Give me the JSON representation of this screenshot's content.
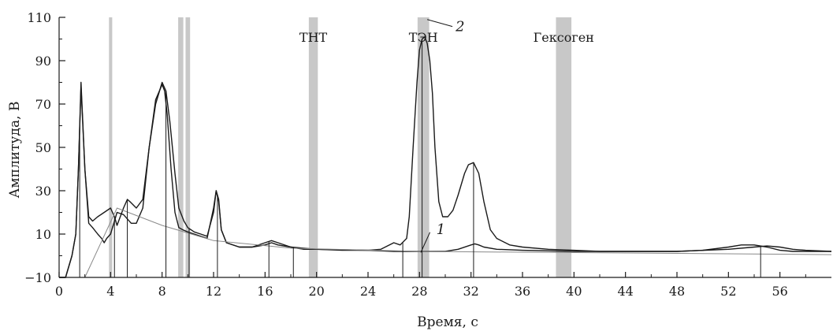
{
  "chart_data": {
    "type": "line",
    "title": "",
    "xlabel": "Время, с",
    "ylabel": "Амплитуда, В",
    "xlim": [
      0,
      60
    ],
    "ylim": [
      -10,
      110
    ],
    "xticks": [
      0,
      4,
      8,
      12,
      16,
      20,
      24,
      28,
      32,
      36,
      40,
      44,
      48,
      52,
      56
    ],
    "yticks": [
      -10,
      10,
      30,
      50,
      70,
      90,
      110
    ],
    "ytick_labels": [
      "−10",
      "10",
      "30",
      "50",
      "70",
      "90",
      "110"
    ],
    "grid": false,
    "legend": "none",
    "highlight_bands": [
      {
        "x": 4.0,
        "width": 0.25,
        "label": ""
      },
      {
        "x": 9.45,
        "width": 0.4,
        "label": ""
      },
      {
        "x": 10.0,
        "width": 0.35,
        "label": ""
      },
      {
        "x": 19.75,
        "width": 0.7,
        "label": "ТНТ"
      },
      {
        "x": 28.3,
        "width": 0.9,
        "label": "ТЭН"
      },
      {
        "x": 39.2,
        "width": 1.2,
        "label": "Гексоген"
      }
    ],
    "band_color": "#c8c8c8",
    "curve_labels": [
      {
        "text": "1",
        "x": 29.3,
        "y": 5.0
      },
      {
        "text": "2",
        "x": 30.8,
        "y": 106.5
      }
    ],
    "series": [
      {
        "x": [
          0,
          0.5,
          1.0,
          1.3,
          1.5,
          1.7,
          2.0,
          2.3,
          2.6,
          3.0,
          3.3,
          3.5,
          3.7,
          4.0,
          4.2,
          4.5,
          5.0,
          5.3,
          5.6,
          6.0,
          6.5,
          7.0,
          7.5,
          8.0,
          8.2,
          8.4,
          8.7,
          9.0,
          9.3,
          9.6,
          10.0,
          10.5,
          11.0,
          11.5,
          12.0,
          12.2,
          12.4,
          12.6,
          13.0,
          14.0,
          15.0,
          16.0,
          16.5,
          17.0,
          18.0,
          19.0,
          20.0,
          22.0,
          24.0,
          25.0,
          26.0,
          26.5,
          27.0,
          27.2,
          27.5,
          27.8,
          28.0,
          28.2,
          28.4,
          28.6,
          28.8,
          29.0,
          29.2,
          29.5,
          29.8,
          30.2,
          30.6,
          31.0,
          31.5,
          31.8,
          32.2,
          32.6,
          33.0,
          33.5,
          34.0,
          35.0,
          36.0,
          38.0,
          40.0,
          42.0,
          45.0,
          48.0,
          50.0,
          52.0,
          53.0,
          54.0,
          55.0,
          56.0,
          57.0,
          58.0,
          59.0,
          60.0
        ],
        "y": [
          -10,
          -10,
          0,
          10,
          40,
          78,
          40,
          15,
          13,
          10,
          8,
          6,
          8,
          10,
          14,
          20,
          19,
          17,
          15,
          15,
          22,
          50,
          72,
          79,
          76,
          65,
          40,
          20,
          13,
          12,
          11,
          10,
          9,
          8,
          22,
          30,
          25,
          12,
          6,
          4,
          4,
          5,
          6,
          5,
          4,
          3,
          3,
          2.5,
          2.5,
          3,
          6,
          5,
          8,
          18,
          50,
          80,
          95,
          100,
          101,
          98,
          90,
          75,
          50,
          25,
          18,
          18,
          21,
          28,
          38,
          42,
          43,
          38,
          25,
          12,
          8,
          5,
          4,
          3,
          2.5,
          2,
          2,
          2,
          2.5,
          4,
          5,
          5,
          4,
          2.5,
          2,
          2,
          2,
          2
        ]
      },
      {
        "x": [
          0,
          0.5,
          1.0,
          1.3,
          1.5,
          1.7,
          2.0,
          2.3,
          2.6,
          3.0,
          3.5,
          4.0,
          4.3,
          4.5,
          5.0,
          5.3,
          5.5,
          6.0,
          6.5,
          7.0,
          7.5,
          8.0,
          8.3,
          8.6,
          9.0,
          9.3,
          9.7,
          10.0,
          10.5,
          11.0,
          11.5,
          12.0,
          12.2,
          12.4,
          12.6,
          13.0,
          14.0,
          15.0,
          16.0,
          16.5,
          17.0,
          18.0,
          20.0,
          24.0,
          26.0,
          27.0,
          28.0,
          29.0,
          30.0,
          31.0,
          32.0,
          32.3,
          32.6,
          33.0,
          34.0,
          36.0,
          40.0,
          44.0,
          48.0,
          52.0,
          54.0,
          55.0,
          56.0,
          57.0,
          58.0,
          60.0
        ],
        "y": [
          -10,
          -10,
          0,
          10,
          40,
          80,
          40,
          18,
          16,
          18,
          20,
          22,
          18,
          14,
          22,
          26,
          25,
          22,
          26,
          50,
          70,
          80,
          76,
          62,
          38,
          22,
          16,
          13,
          11,
          10,
          9,
          20,
          30,
          26,
          12,
          6,
          4,
          4,
          6,
          7,
          6,
          4,
          3,
          2.5,
          2,
          2,
          2,
          2,
          2,
          3,
          5,
          5.5,
          5,
          4,
          3,
          2.5,
          2,
          2,
          2,
          3,
          4,
          4.5,
          4,
          3,
          2.5,
          2
        ]
      },
      {
        "x": [
          2.0,
          4.5,
          8.0,
          12.0,
          18.0,
          28.0,
          60.0
        ],
        "y": [
          -10,
          22,
          14,
          7,
          3.5,
          2,
          0.5
        ]
      }
    ],
    "baseline_marks_x": [
      1.6,
      4.3,
      5.3,
      8.3,
      10.1,
      12.3,
      16.3,
      18.2,
      26.7,
      28.2,
      32.2,
      54.5
    ]
  }
}
